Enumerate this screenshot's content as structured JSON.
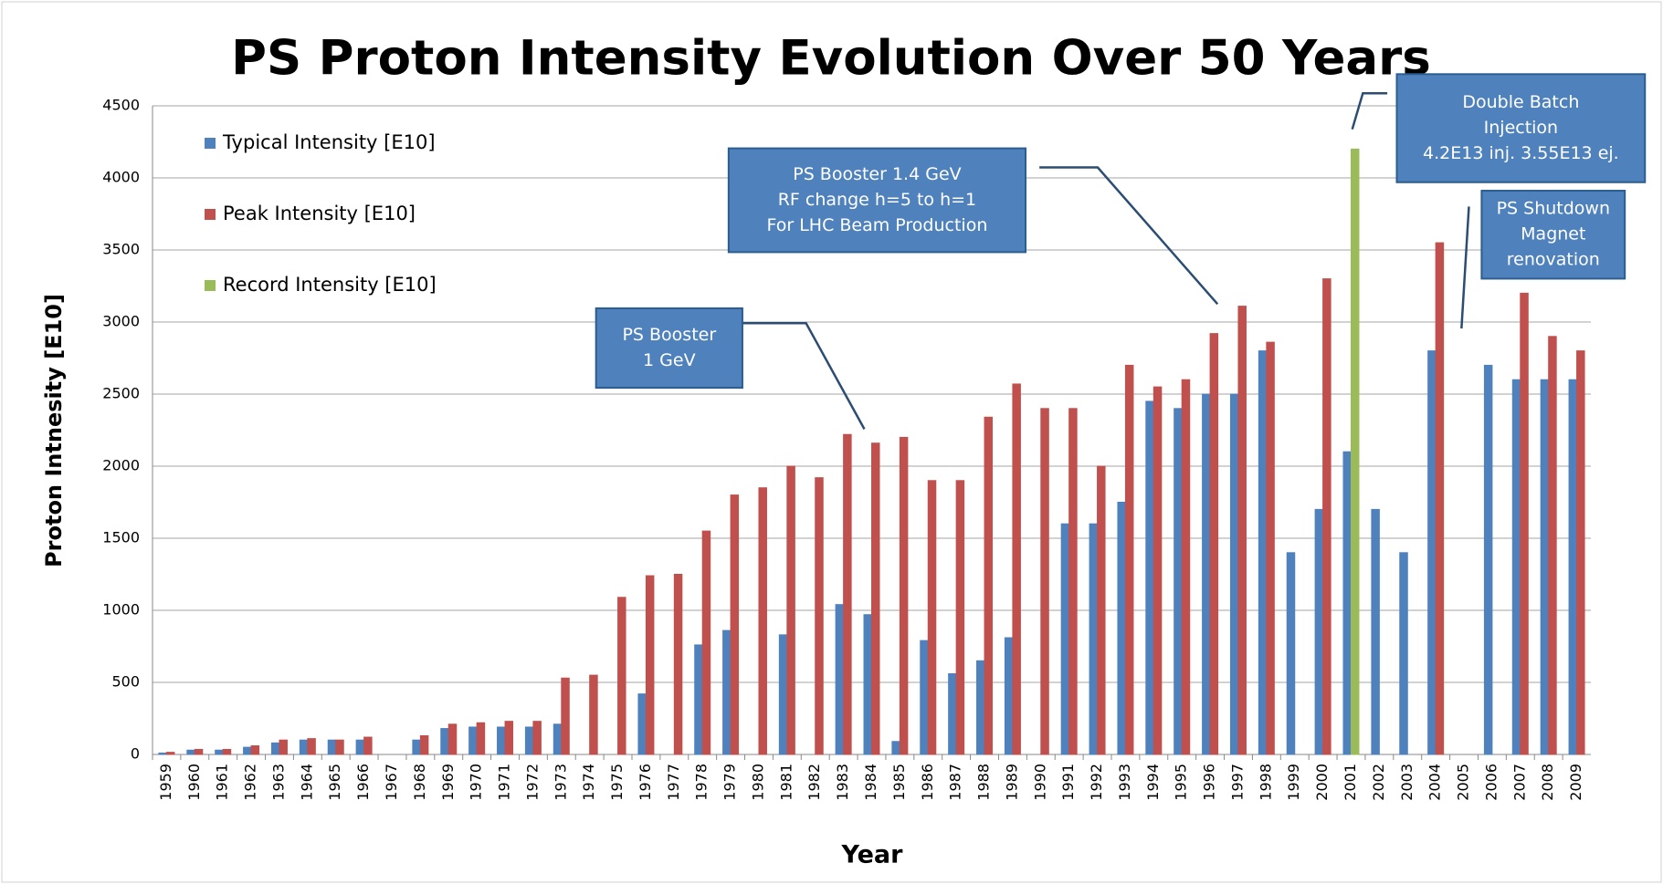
{
  "chart_data": {
    "type": "bar",
    "title": "PS Proton Intensity Evolution Over 50 Years",
    "x_label": "Year",
    "y_label": "Proton Intnesity [E10]",
    "categories": [
      "1959",
      "1960",
      "1961",
      "1962",
      "1963",
      "1964",
      "1965",
      "1966",
      "1967",
      "1968",
      "1969",
      "1970",
      "1971",
      "1972",
      "1973",
      "1974",
      "1975",
      "1976",
      "1977",
      "1978",
      "1979",
      "1980",
      "1981",
      "1982",
      "1983",
      "1984",
      "1985",
      "1986",
      "1987",
      "1988",
      "1989",
      "1990",
      "1991",
      "1992",
      "1993",
      "1994",
      "1995",
      "1996",
      "1997",
      "1998",
      "1999",
      "2000",
      "2001",
      "2002",
      "2003",
      "2004",
      "2005",
      "2006",
      "2007",
      "2008",
      "2009"
    ],
    "series": [
      {
        "name": "Typical Intensity [E10]",
        "color": "#4f81bd",
        "values": [
          10,
          30,
          30,
          50,
          80,
          100,
          100,
          100,
          null,
          100,
          180,
          190,
          190,
          190,
          210,
          null,
          null,
          420,
          null,
          760,
          860,
          null,
          830,
          null,
          1040,
          970,
          90,
          790,
          560,
          650,
          810,
          null,
          1600,
          1600,
          1750,
          2450,
          2400,
          2500,
          2500,
          2800,
          1400,
          1700,
          2100,
          1700,
          1400,
          2800,
          null,
          2700,
          2600,
          2600,
          2600
        ]
      },
      {
        "name": "Peak Intensity [E10]",
        "color": "#c0504d",
        "values": [
          15,
          35,
          35,
          60,
          100,
          110,
          100,
          120,
          null,
          130,
          210,
          220,
          230,
          230,
          530,
          550,
          1090,
          1240,
          1250,
          1550,
          1800,
          1850,
          2000,
          1920,
          2220,
          2160,
          2200,
          1900,
          1900,
          2340,
          2570,
          2400,
          2400,
          2000,
          2700,
          2550,
          2600,
          2920,
          3110,
          2860,
          null,
          3300,
          null,
          null,
          null,
          3550,
          null,
          null,
          3200,
          2900,
          2800
        ]
      },
      {
        "name": "Record Intensity [E10]",
        "color": "#9bbb59",
        "values": [
          null,
          null,
          null,
          null,
          null,
          null,
          null,
          null,
          null,
          null,
          null,
          null,
          null,
          null,
          null,
          null,
          null,
          null,
          null,
          null,
          null,
          null,
          null,
          null,
          null,
          null,
          null,
          null,
          null,
          null,
          null,
          null,
          null,
          null,
          null,
          null,
          null,
          null,
          null,
          null,
          null,
          null,
          4200,
          null,
          null,
          null,
          null,
          null,
          null,
          null,
          null
        ]
      }
    ],
    "ylim": [
      0,
      4500
    ],
    "yticks": [
      0,
      500,
      1000,
      1500,
      2000,
      2500,
      3000,
      3500,
      4000,
      4500
    ],
    "grid": true,
    "legend": "top-left",
    "annotations": [
      {
        "lines": [
          "PS Booster",
          "1 GeV"
        ]
      },
      {
        "lines": [
          "PS Booster 1.4 GeV",
          "RF change h=5 to h=1",
          "For LHC Beam Production"
        ]
      },
      {
        "lines": [
          "Double  Batch",
          "Injection",
          "4.2E13 inj.  3.55E13 ej."
        ]
      },
      {
        "lines": [
          "PS  Shutdown",
          "Magnet",
          "renovation"
        ]
      }
    ]
  }
}
